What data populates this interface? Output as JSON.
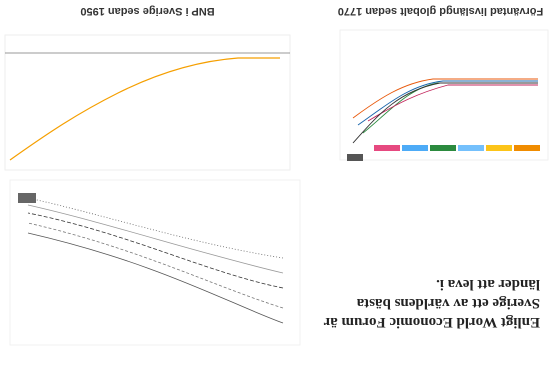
{
  "text": {
    "lines": [
      "Enligt World Economic Forum är",
      "Sverige ett av världens bästa",
      "länder att leva i."
    ]
  },
  "charts": [
    {
      "title": "Förväntad livslängd globalt sedan 1770"
    },
    {
      "title": "BNP i Sverige sedan 1950"
    }
  ]
}
